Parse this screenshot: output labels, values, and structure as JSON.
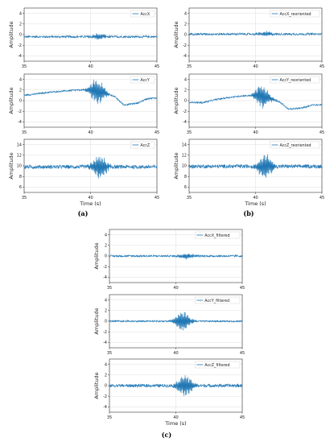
{
  "figure": {
    "panel_labels": [
      "(a)",
      "(b)",
      "(c)"
    ]
  },
  "chart_data": [
    {
      "type": "line",
      "panel": "a",
      "ylabel": "Amplitude",
      "xlabel": "",
      "series": [
        {
          "name": "AccX",
          "color": "#1f77b4"
        }
      ],
      "xlim": [
        35,
        45
      ],
      "ylim": [
        -5,
        5
      ],
      "xticks": [
        35,
        40,
        45
      ],
      "yticks": [
        4,
        2,
        0,
        -2,
        -4
      ],
      "grid": true,
      "legend": "top-right",
      "signal": {
        "baseline": -0.4,
        "noise": 0.2,
        "event_center": 40.6,
        "event_amp": 0.6
      }
    },
    {
      "type": "line",
      "panel": "a",
      "ylabel": "Amplitude",
      "xlabel": "",
      "series": [
        {
          "name": "AccY",
          "color": "#1f77b4"
        }
      ],
      "xlim": [
        35,
        45
      ],
      "ylim": [
        -5,
        5
      ],
      "xticks": [
        35,
        40,
        45
      ],
      "yticks": [
        4,
        2,
        0,
        -2,
        -4
      ],
      "grid": true,
      "legend": "top-right",
      "signal": {
        "trend": [
          [
            35,
            1.0
          ],
          [
            36,
            1.3
          ],
          [
            37,
            1.6
          ],
          [
            38,
            1.8
          ],
          [
            39,
            2.0
          ],
          [
            40,
            2.0
          ],
          [
            41,
            1.5
          ],
          [
            41.8,
            0.8
          ],
          [
            42.5,
            -0.8
          ],
          [
            43.5,
            -0.5
          ],
          [
            44.3,
            0.4
          ],
          [
            45,
            0.5
          ]
        ],
        "noise": 0.15,
        "event_center": 40.5,
        "event_amp": 2.5
      }
    },
    {
      "type": "line",
      "panel": "a",
      "ylabel": "Amplitude",
      "xlabel": "Time (s)",
      "series": [
        {
          "name": "AccZ",
          "color": "#1f77b4"
        }
      ],
      "xlim": [
        35,
        45
      ],
      "ylim": [
        5,
        15
      ],
      "xticks": [
        35,
        40,
        45
      ],
      "yticks": [
        14,
        12,
        10,
        8,
        6
      ],
      "grid": true,
      "legend": "top-right",
      "signal": {
        "baseline": 9.8,
        "noise": 0.35,
        "event_center": 40.7,
        "event_amp": 2.3
      }
    },
    {
      "type": "line",
      "panel": "b",
      "ylabel": "Amplitude",
      "xlabel": "",
      "series": [
        {
          "name": "AccX_reoriented",
          "color": "#1f77b4"
        }
      ],
      "xlim": [
        35,
        45
      ],
      "ylim": [
        -5,
        5
      ],
      "xticks": [
        35,
        40,
        45
      ],
      "yticks": [
        4,
        2,
        0,
        -2,
        -4
      ],
      "grid": true,
      "legend": "top-right",
      "signal": {
        "baseline": 0.1,
        "noise": 0.2,
        "event_center": 40.8,
        "event_amp": 0.5
      }
    },
    {
      "type": "line",
      "panel": "b",
      "ylabel": "Amplitude",
      "xlabel": "",
      "series": [
        {
          "name": "AccY_reoriented",
          "color": "#1f77b4"
        }
      ],
      "xlim": [
        35,
        45
      ],
      "ylim": [
        -5,
        5
      ],
      "xticks": [
        35,
        40,
        45
      ],
      "yticks": [
        4,
        2,
        0,
        -2,
        -4
      ],
      "grid": true,
      "legend": "top-right",
      "signal": {
        "trend": [
          [
            35,
            -0.3
          ],
          [
            36,
            -0.4
          ],
          [
            37,
            0.2
          ],
          [
            38,
            0.6
          ],
          [
            39,
            0.9
          ],
          [
            40,
            1.0
          ],
          [
            41,
            0.5
          ],
          [
            41.8,
            -0.2
          ],
          [
            42.5,
            -1.6
          ],
          [
            43.5,
            -1.4
          ],
          [
            44.3,
            -0.8
          ],
          [
            45,
            -0.8
          ]
        ],
        "noise": 0.15,
        "event_center": 40.5,
        "event_amp": 2.3
      }
    },
    {
      "type": "line",
      "panel": "b",
      "ylabel": "Amplitude",
      "xlabel": "Time (s)",
      "series": [
        {
          "name": "AccZ_reoriented",
          "color": "#1f77b4"
        }
      ],
      "xlim": [
        35,
        45
      ],
      "ylim": [
        5,
        15
      ],
      "xticks": [
        35,
        40,
        45
      ],
      "yticks": [
        14,
        12,
        10,
        8,
        6
      ],
      "grid": true,
      "legend": "top-right",
      "signal": {
        "baseline": 9.9,
        "noise": 0.35,
        "event_center": 40.7,
        "event_amp": 2.4
      }
    },
    {
      "type": "line",
      "panel": "c",
      "ylabel": "Amplitude",
      "xlabel": "",
      "series": [
        {
          "name": "AccX_filtered",
          "color": "#1f77b4"
        }
      ],
      "xlim": [
        35,
        45
      ],
      "ylim": [
        -5,
        5
      ],
      "xticks": [
        35,
        40,
        45
      ],
      "yticks": [
        4,
        2,
        0,
        -2,
        -4
      ],
      "grid": true,
      "legend": "top-right",
      "signal": {
        "baseline": 0.0,
        "noise": 0.18,
        "event_center": 40.8,
        "event_amp": 0.6
      }
    },
    {
      "type": "line",
      "panel": "c",
      "ylabel": "Amplitude",
      "xlabel": "",
      "series": [
        {
          "name": "AccY_filtered",
          "color": "#1f77b4"
        }
      ],
      "xlim": [
        35,
        45
      ],
      "ylim": [
        -5,
        5
      ],
      "xticks": [
        35,
        40,
        45
      ],
      "yticks": [
        4,
        2,
        0,
        -2,
        -4
      ],
      "grid": true,
      "legend": "top-right",
      "signal": {
        "baseline": 0.0,
        "noise": 0.15,
        "event_center": 40.5,
        "event_amp": 2.0
      }
    },
    {
      "type": "line",
      "panel": "c",
      "ylabel": "Amplitude",
      "xlabel": "Time (s)",
      "series": [
        {
          "name": "AccZ_filtered",
          "color": "#1f77b4"
        }
      ],
      "xlim": [
        35,
        45
      ],
      "ylim": [
        -5,
        5
      ],
      "xticks": [
        35,
        40,
        45
      ],
      "yticks": [
        4,
        2,
        0,
        -2,
        -4
      ],
      "grid": true,
      "legend": "top-right",
      "signal": {
        "baseline": 0.0,
        "noise": 0.3,
        "event_center": 40.7,
        "event_amp": 2.2
      }
    }
  ]
}
